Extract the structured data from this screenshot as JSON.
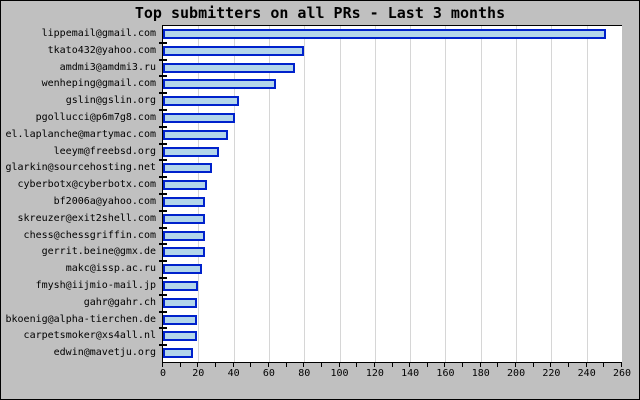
{
  "title": "Top submitters on all PRs - Last 3 months",
  "chart_data": {
    "type": "bar",
    "orientation": "horizontal",
    "title": "Top submitters on all PRs - Last 3 months",
    "categories": [
      "lippemail@gmail.com",
      "tkato432@yahoo.com",
      "amdmi3@amdmi3.ru",
      "wenheping@gmail.com",
      "gslin@gslin.org",
      "pgollucci@p6m7g8.com",
      "el.laplanche@martymac.com",
      "leeym@freebsd.org",
      "glarkin@sourcehosting.net",
      "cyberbotx@cyberbotx.com",
      "bf2006a@yahoo.com",
      "skreuzer@exit2shell.com",
      "chess@chessgriffin.com",
      "gerrit.beine@gmx.de",
      "makc@issp.ac.ru",
      "fmysh@iijmio-mail.jp",
      "gahr@gahr.ch",
      "bkoenig@alpha-tierchen.de",
      "carpetsmoker@xs4all.nl",
      "edwin@mavetju.org"
    ],
    "values": [
      251,
      80,
      75,
      64,
      43,
      41,
      37,
      32,
      28,
      25,
      24,
      24,
      24,
      24,
      22,
      20,
      19,
      19,
      19,
      17
    ],
    "xlabel": "",
    "ylabel": "",
    "xlim": [
      0,
      260
    ],
    "xticks": [
      0,
      20,
      40,
      60,
      80,
      100,
      120,
      140,
      160,
      180,
      200,
      220,
      240,
      260
    ],
    "minor_tick_step": 10,
    "grid": true,
    "legend": "none",
    "colors": {
      "background": "#c0c0c0",
      "plot_background": "#ffffff",
      "gridline": "#d6d6d6",
      "axis": "#000000",
      "bar_fill": "#b3d6ea",
      "bar_border": "#0022cc",
      "text": "#000000"
    }
  }
}
